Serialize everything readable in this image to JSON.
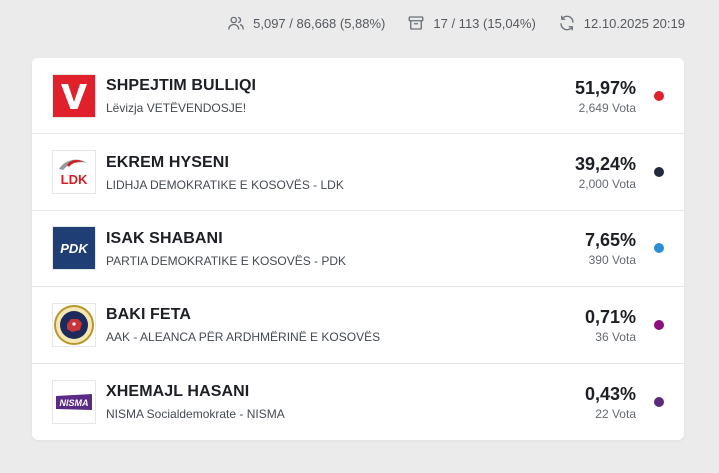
{
  "header": {
    "voters": "5,097 / 86,668 (5,88%)",
    "stations": "17 / 113 (15,04%)",
    "updated": "12.10.2025 20:19"
  },
  "candidates": [
    {
      "name": "SHPEJTIM BULLIQI",
      "party": "Lëvizja VETËVENDOSJE!",
      "percent": "51,97%",
      "votes": "2,649 Vota",
      "color": "#e0202b",
      "logo_icon": "vetevendosje-logo-icon",
      "logo_text": "V"
    },
    {
      "name": "EKREM HYSENI",
      "party": "LIDHJA DEMOKRATIKE E KOSOVËS - LDK",
      "percent": "39,24%",
      "votes": "2,000 Vota",
      "color": "#222a40",
      "logo_icon": "ldk-logo-icon",
      "logo_text": "LDK"
    },
    {
      "name": "ISAK SHABANI",
      "party": "PARTIA DEMOKRATIKE E KOSOVËS - PDK",
      "percent": "7,65%",
      "votes": "390 Vota",
      "color": "#2b8fd6",
      "logo_icon": "pdk-logo-icon",
      "logo_text": "PDK"
    },
    {
      "name": "BAKI FETA",
      "party": "AAK - ALEANCA PËR ARDHMËRINË E KOSOVËS",
      "percent": "0,71%",
      "votes": "36 Vota",
      "color": "#8a0f7c",
      "logo_icon": "aak-logo-icon",
      "logo_text": ""
    },
    {
      "name": "XHEMAJL HASANI",
      "party": "NISMA Socialdemokrate - NISMA",
      "percent": "0,43%",
      "votes": "22 Vota",
      "color": "#5b2a7d",
      "logo_icon": "nisma-logo-icon",
      "logo_text": "NISMA"
    }
  ]
}
